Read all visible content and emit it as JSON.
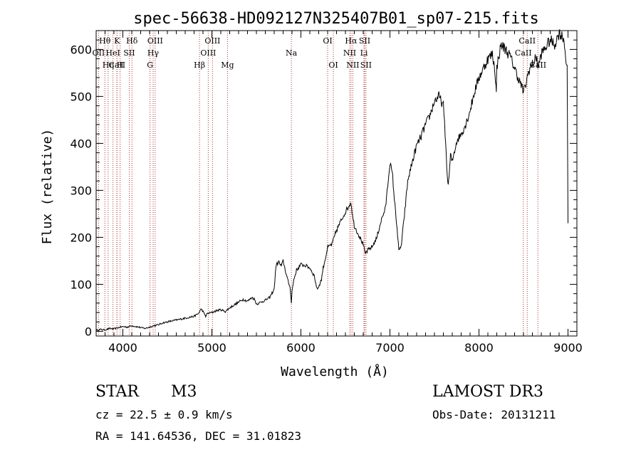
{
  "chart_data": {
    "type": "line",
    "title": "spec-56638-HD092127N325407B01_sp07-215.fits",
    "xlabel": "Wavelength (Å)",
    "ylabel": "Flux (relative)",
    "xlim": [
      3700,
      9100
    ],
    "ylim": [
      -10,
      640
    ],
    "x_ticks": [
      4000,
      5000,
      6000,
      7000,
      8000,
      9000
    ],
    "x_tick_labels": [
      "4000",
      "5000",
      "6000",
      "7000",
      "8000",
      "9000"
    ],
    "y_ticks": [
      0,
      100,
      200,
      300,
      400,
      500,
      600
    ],
    "y_tick_labels": [
      "0",
      "100",
      "200",
      "300",
      "400",
      "500",
      "600"
    ],
    "series": [
      {
        "name": "flux",
        "x": [
          3700,
          3750,
          3800,
          3850,
          3900,
          3950,
          4000,
          4050,
          4100,
          4150,
          4200,
          4250,
          4300,
          4350,
          4400,
          4450,
          4500,
          4550,
          4600,
          4650,
          4700,
          4750,
          4800,
          4850,
          4880,
          4900,
          4930,
          4950,
          5000,
          5050,
          5100,
          5150,
          5200,
          5250,
          5300,
          5350,
          5400,
          5450,
          5480,
          5500,
          5550,
          5600,
          5650,
          5700,
          5720,
          5750,
          5780,
          5800,
          5850,
          5880,
          5893,
          5900,
          5920,
          5950,
          6000,
          6050,
          6100,
          6150,
          6180,
          6200,
          6230,
          6250,
          6280,
          6300,
          6350,
          6400,
          6450,
          6500,
          6520,
          6540,
          6563,
          6580,
          6600,
          6650,
          6700,
          6720,
          6750,
          6800,
          6850,
          6900,
          6950,
          7000,
          7030,
          7050,
          7080,
          7100,
          7130,
          7150,
          7180,
          7200,
          7250,
          7300,
          7350,
          7400,
          7450,
          7500,
          7550,
          7600,
          7620,
          7650,
          7665,
          7680,
          7700,
          7720,
          7750,
          7800,
          7850,
          7900,
          7950,
          8000,
          8050,
          8100,
          8150,
          8180,
          8195,
          8200,
          8220,
          8250,
          8300,
          8350,
          8400,
          8450,
          8480,
          8500,
          8520,
          8542,
          8560,
          8600,
          8650,
          8662,
          8700,
          8750,
          8800,
          8850,
          8900,
          8950,
          8990,
          9000
        ],
        "y": [
          2,
          4,
          3,
          6,
          5,
          8,
          10,
          9,
          12,
          10,
          8,
          6,
          9,
          12,
          14,
          18,
          20,
          22,
          24,
          26,
          28,
          30,
          32,
          38,
          48,
          42,
          32,
          38,
          40,
          44,
          46,
          42,
          50,
          56,
          62,
          68,
          64,
          72,
          68,
          58,
          62,
          66,
          72,
          90,
          140,
          148,
          138,
          150,
          110,
          92,
          60,
          85,
          110,
          130,
          142,
          140,
          135,
          118,
          90,
          95,
          110,
          135,
          160,
          178,
          186,
          215,
          235,
          255,
          260,
          268,
          275,
          245,
          225,
          205,
          185,
          165,
          172,
          180,
          198,
          235,
          262,
          360,
          330,
          280,
          220,
          170,
          185,
          225,
          280,
          320,
          360,
          395,
          415,
          440,
          460,
          490,
          500,
          480,
          420,
          310,
          330,
          375,
          360,
          380,
          405,
          420,
          440,
          470,
          510,
          540,
          560,
          580,
          590,
          555,
          505,
          560,
          585,
          610,
          600,
          585,
          560,
          535,
          520,
          510,
          520,
          540,
          555,
          568,
          585,
          560,
          590,
          605,
          620,
          610,
          635,
          625,
          560,
          230
        ]
      }
    ],
    "lines": [
      {
        "name": "Hθ",
        "x": 3798,
        "row": 0
      },
      {
        "name": "OII",
        "x": 3727,
        "row": 1
      },
      {
        "name": "CaII",
        "x": 3934,
        "row": 2
      },
      {
        "name": "Hη",
        "x": 3835,
        "row": 2
      },
      {
        "name": "K",
        "x": 3934,
        "row": 0
      },
      {
        "name": "H",
        "x": 3969,
        "row": 2
      },
      {
        "name": "HeI",
        "x": 3889,
        "row": 1
      },
      {
        "name": "SII",
        "x": 4072,
        "row": 1
      },
      {
        "name": "Hδ",
        "x": 4102,
        "row": 0
      },
      {
        "name": "OIII",
        "x": 4363,
        "row": 0
      },
      {
        "name": "Hγ",
        "x": 4340,
        "row": 1
      },
      {
        "name": "G",
        "x": 4305,
        "row": 2
      },
      {
        "name": "Hβ",
        "x": 4861,
        "row": 2
      },
      {
        "name": "OIII",
        "x": 4959,
        "row": 1
      },
      {
        "name": "OIII",
        "x": 5007,
        "row": 0
      },
      {
        "name": "Mg",
        "x": 5175,
        "row": 2
      },
      {
        "name": "Na",
        "x": 5893,
        "row": 1
      },
      {
        "name": "OI",
        "x": 6300,
        "row": 0
      },
      {
        "name": "OI",
        "x": 6364,
        "row": 2
      },
      {
        "name": "NII",
        "x": 6548,
        "row": 1
      },
      {
        "name": "Hα",
        "x": 6563,
        "row": 0
      },
      {
        "name": "NII",
        "x": 6583,
        "row": 2
      },
      {
        "name": "SII",
        "x": 6716,
        "row": 0
      },
      {
        "name": "Li",
        "x": 6708,
        "row": 1
      },
      {
        "name": "SII",
        "x": 6731,
        "row": 2
      },
      {
        "name": "CaII",
        "x": 8498,
        "row": 1
      },
      {
        "name": "CaII",
        "x": 8542,
        "row": 0
      },
      {
        "name": "CaII",
        "x": 8662,
        "row": 2
      }
    ]
  },
  "info": {
    "obj_class": "STAR",
    "obj_subclass": "M3",
    "cz": "cz = 22.5 ± 0.9 km/s",
    "radec": "RA = 141.64536, DEC =  31.01823",
    "survey": "LAMOST DR3",
    "obs_date": "Obs-Date: 20131211"
  },
  "colors": {
    "line_marker": "#b03030",
    "spectrum": "#000000",
    "axes": "#000000"
  }
}
